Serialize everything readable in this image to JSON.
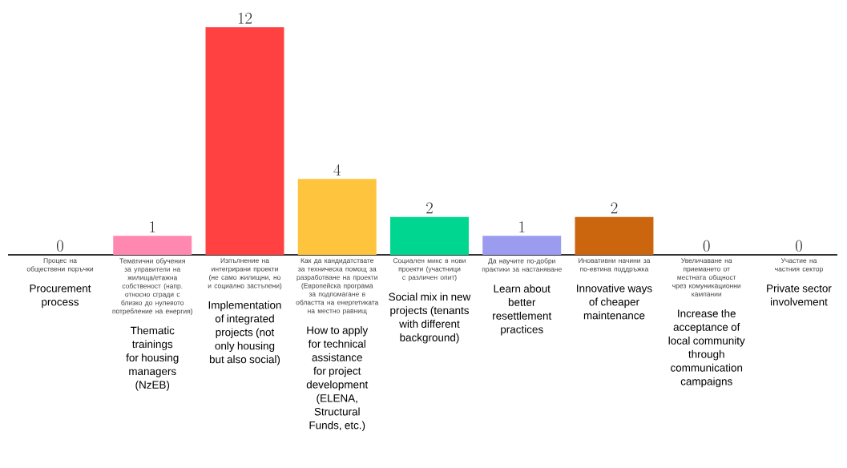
{
  "chart_data": {
    "type": "bar",
    "categories": [
      "Процес на обществени поръчки",
      "Тематични обучения за управители на жилища/етажна собственост (напр. относно сгради с близко до нулевото потребление на енергия)",
      "Изпълнение на интегрирани проекти (не само жилищни, но и социално застъпени)",
      "Как да кандидатствате за техническа помощ за разработване на проекти (Европейска програма за подпомагане в областта на енергетиката на местно равнищ",
      "Социален микс в нови проекти (участници с различен опит)",
      "Да научите по-добри практики за настаняване",
      "Иновативни начини за по-евтина поддръжка",
      "Увеличаване на приемането от местната общност чрез комуникационни кампании",
      "Участие на частния сектор"
    ],
    "values": [
      0,
      1,
      12,
      4,
      2,
      1,
      2,
      0,
      0
    ],
    "colors": [
      "#ff88b0",
      "#ff88b0",
      "#ff4141",
      "#ffc43d",
      "#00d68f",
      "#9b9bef",
      "#cc660e",
      "#9b9bef",
      "#9b9bef"
    ],
    "data_labels": true,
    "annotations": [
      "Procurement process",
      "Thematic trainings for housing managers (NzEB)",
      "Implementation of integrated projects (not only housing but also social)",
      "How to apply for technical assistance for project development (ELENA, Structural Funds, etc.)",
      "Social mix in new projects (tenants with different background)",
      "Learn about better resettlement practices",
      "Innovative ways of cheaper maintenance",
      "Increase the acceptance of local community through communication campaigns",
      "Private sector involvement"
    ]
  }
}
